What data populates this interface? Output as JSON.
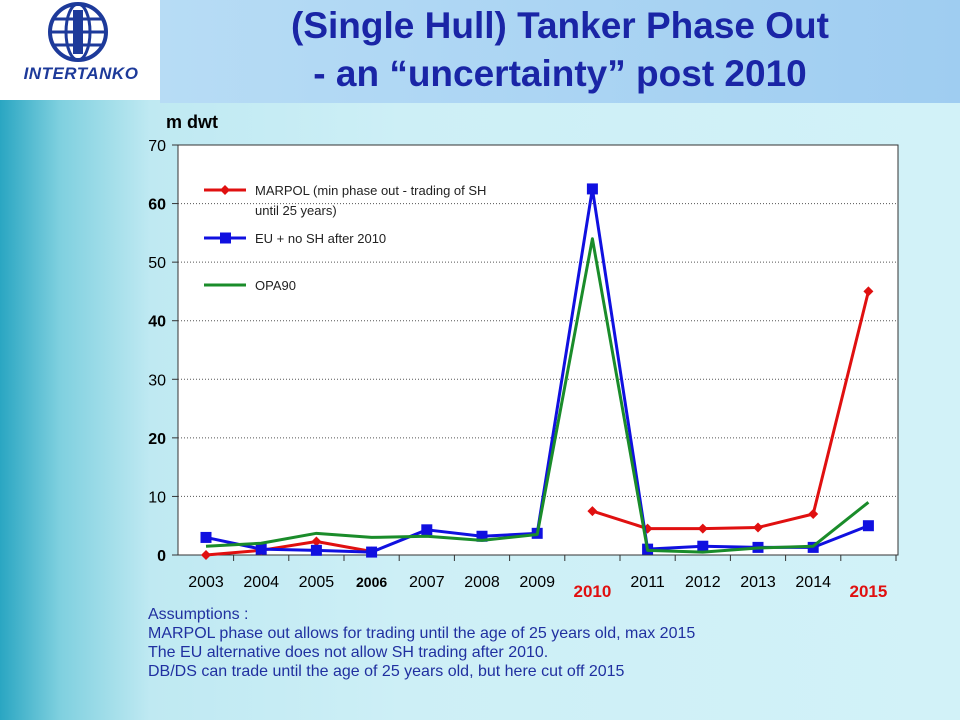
{
  "logo": {
    "text": "INTERTANKO",
    "globe_icon": "globe-icon"
  },
  "title": {
    "line1": "(Single Hull) Tanker Phase Out",
    "line2": "- an “uncertainty” post 2010"
  },
  "colors": {
    "title": "#1a25a6",
    "marpol": "#e01010",
    "eu": "#1010e0",
    "opa90": "#1a8c2a",
    "highlight_year": "#e01010",
    "assumptions_text": "#2030a0"
  },
  "chart_data": {
    "type": "line",
    "ylabel": "m dwt",
    "ylim": [
      0,
      70
    ],
    "yticks": [
      0,
      10,
      20,
      30,
      40,
      50,
      60,
      70
    ],
    "yticks_bold": [
      0,
      20,
      40,
      60
    ],
    "grid": true,
    "legend_position": "top-left",
    "categories": [
      "2003",
      "2004",
      "2005",
      "2006",
      "2007",
      "2008",
      "2009",
      "2010",
      "2011",
      "2012",
      "2013",
      "2014",
      "2015"
    ],
    "highlight_categories": [
      "2010",
      "2015"
    ],
    "series": [
      {
        "name": "MARPOL (min phase out - trading of SH until 25 years)",
        "name_lines": [
          "MARPOL (min phase out - trading of SH",
          "until 25 years)"
        ],
        "color": "#e01010",
        "marker": "diamond",
        "values": [
          0,
          0.8,
          2.3,
          0.6,
          null,
          null,
          null,
          7.5,
          4.5,
          4.5,
          4.7,
          7,
          45
        ]
      },
      {
        "name": "EU + no SH after 2010",
        "name_lines": [
          "EU + no SH after 2010"
        ],
        "color": "#1010e0",
        "marker": "square",
        "values": [
          3,
          1,
          0.8,
          0.5,
          4.3,
          3.2,
          3.7,
          62.5,
          1,
          1.5,
          1.3,
          1.3,
          5
        ]
      },
      {
        "name": "OPA90",
        "name_lines": [
          "OPA90"
        ],
        "color": "#1a8c2a",
        "marker": "none",
        "values": [
          1.5,
          2,
          3.7,
          3,
          3.2,
          2.5,
          3.5,
          54,
          0.8,
          0.5,
          1.2,
          1.5,
          9
        ]
      }
    ]
  },
  "assumptions": {
    "heading": "Assumptions :",
    "lines": [
      "MARPOL phase out allows for trading until the age of 25 years old, max 2015",
      "The EU alternative does not allow SH trading after 2010.",
      "DB/DS can trade until the age of 25 years old, but here cut off 2015"
    ]
  }
}
